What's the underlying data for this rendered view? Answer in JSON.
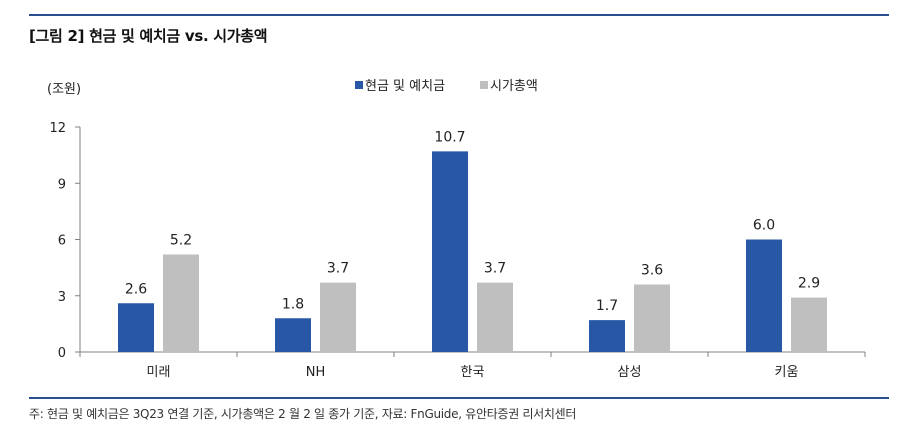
{
  "header": {
    "title": "[그림 2] 현금 및 예치금 vs. 시가총액"
  },
  "footer": {
    "note": "주: 현금 및 예치금은 3Q23 연결 기준, 시가총액은 2 월 2 일 종가 기준, 자료: FnGuide, 유안타증권 리서치센터"
  },
  "chart_data": {
    "type": "bar",
    "title": "",
    "unit_label": "(조원)",
    "xlabel": "",
    "ylabel": "",
    "categories": [
      "미래",
      "NH",
      "한국",
      "삼성",
      "키움"
    ],
    "series": [
      {
        "name": "현금 및 예치금",
        "values": [
          2.6,
          1.8,
          10.7,
          1.7,
          6.0
        ],
        "labels": [
          "2.6",
          "1.8",
          "10.7",
          "1.7",
          "6.0"
        ],
        "color": "#2857a6"
      },
      {
        "name": "시가총액",
        "values": [
          5.2,
          3.7,
          3.7,
          3.6,
          2.9
        ],
        "labels": [
          "5.2",
          "3.7",
          "3.7",
          "3.6",
          "2.9"
        ],
        "color": "#bfbfbf"
      }
    ],
    "ylim": [
      0,
      12
    ],
    "yticks": [
      "0",
      "3",
      "6",
      "9",
      "12"
    ],
    "grid": false,
    "legend_position": "top-center"
  }
}
